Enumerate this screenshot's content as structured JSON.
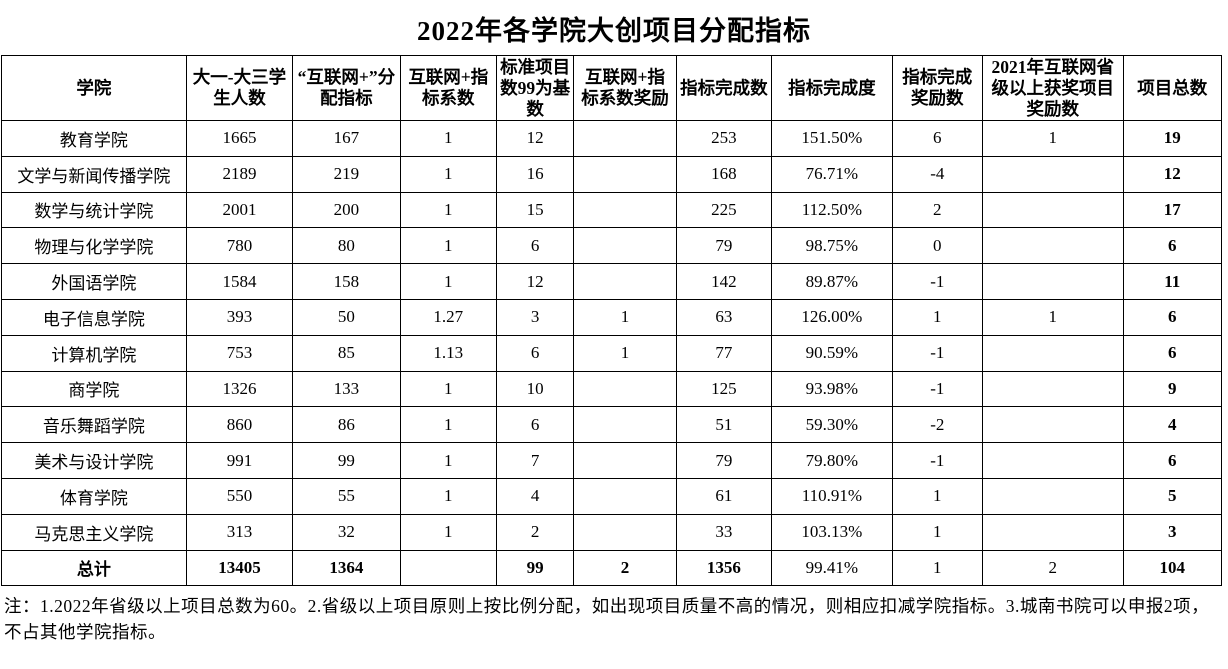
{
  "title": "2022年各学院大创项目分配指标",
  "table": {
    "headers": [
      "学院",
      "大一-大三学生人数",
      "“互联网+”分配指标",
      "互联网+指标系数",
      "标准项目数99为基数",
      "互联网+指标系数奖励",
      "指标完成数",
      "指标完成度",
      "指标完成奖励数",
      "2021年互联网省级以上获奖项目奖励数",
      "项目总数"
    ],
    "rows": [
      [
        "教育学院",
        "1665",
        "167",
        "1",
        "12",
        "",
        "253",
        "151.50%",
        "6",
        "1",
        "19"
      ],
      [
        "文学与新闻传播学院",
        "2189",
        "219",
        "1",
        "16",
        "",
        "168",
        "76.71%",
        "-4",
        "",
        "12"
      ],
      [
        "数学与统计学院",
        "2001",
        "200",
        "1",
        "15",
        "",
        "225",
        "112.50%",
        "2",
        "",
        "17"
      ],
      [
        "物理与化学学院",
        "780",
        "80",
        "1",
        "6",
        "",
        "79",
        "98.75%",
        "0",
        "",
        "6"
      ],
      [
        "外国语学院",
        "1584",
        "158",
        "1",
        "12",
        "",
        "142",
        "89.87%",
        "-1",
        "",
        "11"
      ],
      [
        "电子信息学院",
        "393",
        "50",
        "1.27",
        "3",
        "1",
        "63",
        "126.00%",
        "1",
        "1",
        "6"
      ],
      [
        "计算机学院",
        "753",
        "85",
        "1.13",
        "6",
        "1",
        "77",
        "90.59%",
        "-1",
        "",
        "6"
      ],
      [
        "商学院",
        "1326",
        "133",
        "1",
        "10",
        "",
        "125",
        "93.98%",
        "-1",
        "",
        "9"
      ],
      [
        "音乐舞蹈学院",
        "860",
        "86",
        "1",
        "6",
        "",
        "51",
        "59.30%",
        "-2",
        "",
        "4"
      ],
      [
        "美术与设计学院",
        "991",
        "99",
        "1",
        "7",
        "",
        "79",
        "79.80%",
        "-1",
        "",
        "6"
      ],
      [
        "体育学院",
        "550",
        "55",
        "1",
        "4",
        "",
        "61",
        "110.91%",
        "1",
        "",
        "5"
      ],
      [
        "马克思主义学院",
        "313",
        "32",
        "1",
        "2",
        "",
        "33",
        "103.13%",
        "1",
        "",
        "3"
      ]
    ],
    "total_row": [
      "总计",
      "13405",
      "1364",
      "",
      "99",
      "2",
      "1356",
      "99.41%",
      "1",
      "2",
      "104"
    ]
  },
  "note": "注：1.2022年省级以上项目总数为60。2.省级以上项目原则上按比例分配，如出现项目质量不高的情况，则相应扣减学院指标。3.城南书院可以申报2项，不占其他学院指标。"
}
